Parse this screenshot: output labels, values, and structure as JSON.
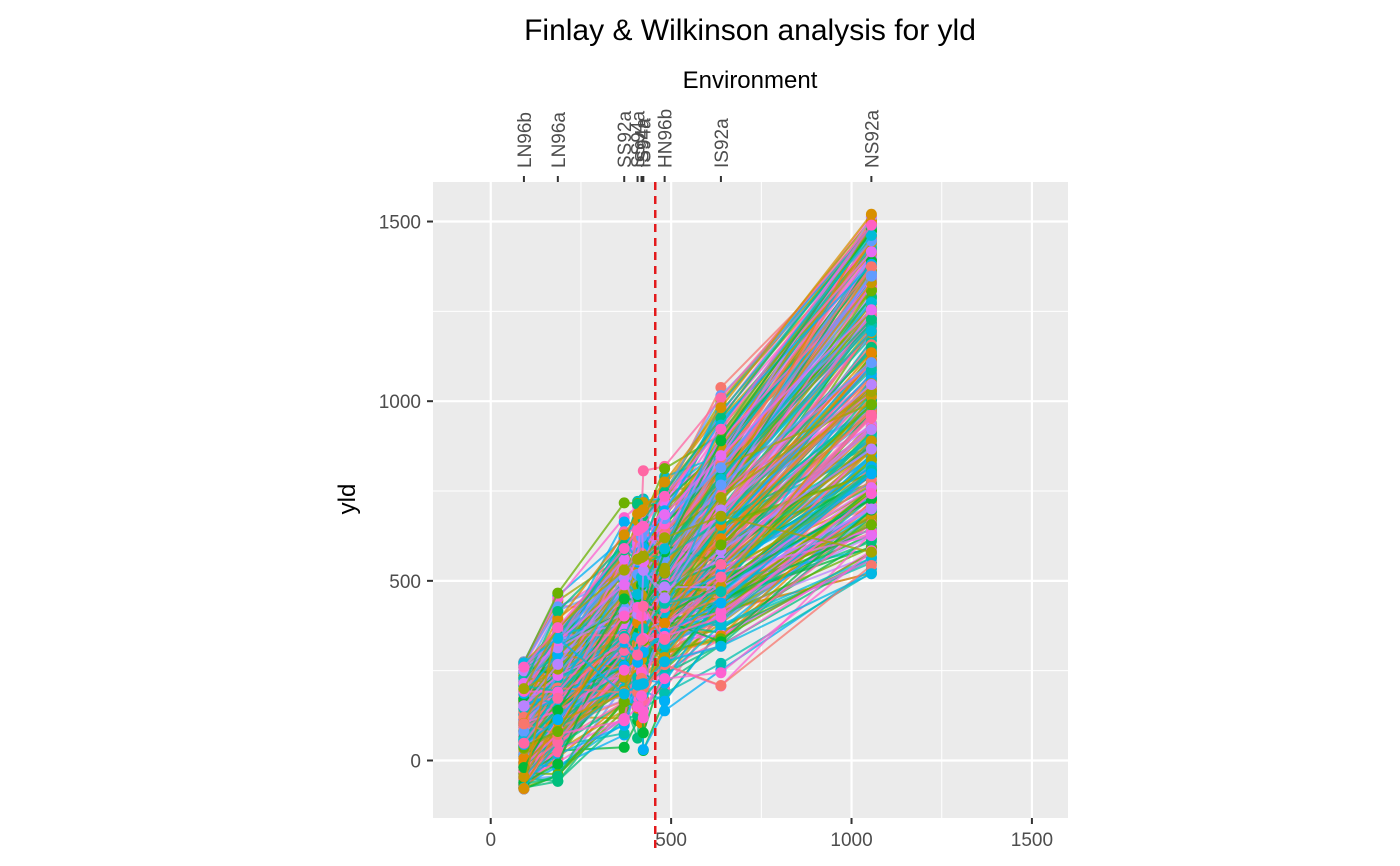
{
  "chart_data": {
    "type": "line",
    "title": "Finlay & Wilkinson analysis for yld",
    "xlabel": "",
    "ylabel": "yld",
    "secondary_xlabel": "Environment",
    "xlim": [
      -160,
      1600
    ],
    "ylim": [
      -160,
      1610
    ],
    "x_ticks": [
      0,
      500,
      1000,
      1500
    ],
    "y_ticks": [
      0,
      500,
      1000,
      1500
    ],
    "grid": true,
    "legend": "none",
    "environments": [
      {
        "name": "LN96b",
        "x": 92
      },
      {
        "name": "LN96a",
        "x": 186
      },
      {
        "name": "SS92a",
        "x": 370
      },
      {
        "name": "SS94a",
        "x": 407
      },
      {
        "name": "IS94a",
        "x": 418
      },
      {
        "name": "IS94a",
        "x": 423
      },
      {
        "name": "HN96b",
        "x": 482
      },
      {
        "name": "IS92a",
        "x": 638
      },
      {
        "name": "NS92a",
        "x": 1055
      }
    ],
    "mean_environment_line": {
      "x": 456,
      "color": "#e31a1c",
      "style": "dashed"
    },
    "series_count": 360,
    "series_generation": {
      "ln96b_min": -80,
      "ln96b_max": 275,
      "ns92a_min": 520,
      "ns92a_max": 1520,
      "residual_sd": 50
    },
    "highlight_series": [
      {
        "values": [
          -78,
          388,
          628,
          686,
          692,
          698,
          775,
          982,
          1520
        ],
        "color": "#d89000"
      },
      {
        "values": [
          272,
          340,
          185,
          210,
          212,
          214,
          275,
          318,
          520
        ],
        "color": "#00b8e5"
      },
      {
        "values": [
          200,
          372,
          530,
          560,
          565,
          568,
          620,
          680,
          580
        ],
        "color": "#a3a500"
      },
      {
        "values": [
          260,
          370,
          590,
          640,
          648,
          652,
          735,
          922,
          1490
        ],
        "color": "#ff61c3"
      }
    ],
    "palette": [
      "#f8766d",
      "#e58700",
      "#c99800",
      "#a3a500",
      "#6bb100",
      "#00ba38",
      "#00bf7d",
      "#00c0af",
      "#00bcd8",
      "#00b0f6",
      "#619cff",
      "#b983ff",
      "#e76bf3",
      "#fd61d1",
      "#ff67a4"
    ]
  }
}
